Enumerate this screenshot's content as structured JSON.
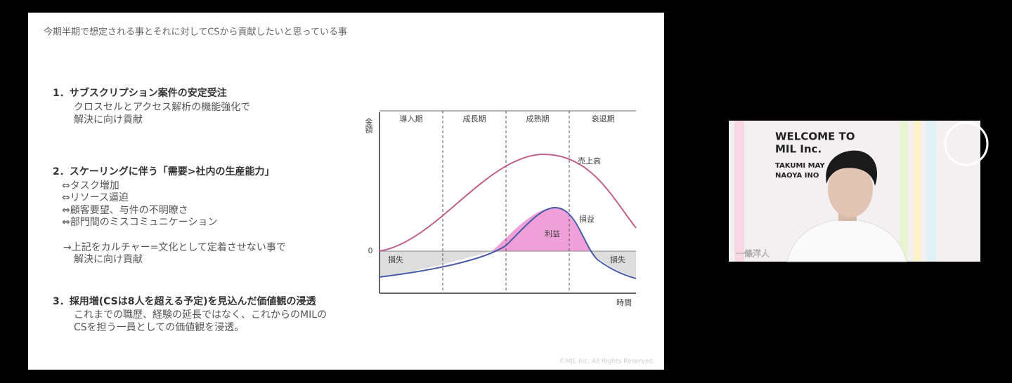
{
  "slide": {
    "title": "今期半期で想定される事とそれに対してCSから貢献したいと思っている事",
    "items": [
      {
        "heading": "1．サブスクリプション案件の安定受注",
        "lines": [
          "クロスセルとアクセス解析の機能強化で",
          "解決に向け貢献"
        ]
      },
      {
        "heading": "2．スケーリングに伴う「需要>社内の生産能力」",
        "lines": [
          "⇔タスク増加",
          "⇔リソース逼迫",
          "⇔顧客要望、与件の不明瞭さ",
          "⇔部門間のミスコミュニケーション",
          "→上記をカルチャー=文化として定着させない事で",
          "解決に向け貢献"
        ]
      },
      {
        "heading": "3．採用増(CSは8人を超える予定)を見込んだ価値観の浸透",
        "lines": [
          "これまでの職歴、経験の延長ではなく、これからのMILの",
          "CSを担う一員としての価値観を浸透。"
        ]
      }
    ],
    "diagram": {
      "y_axis_label": "金額",
      "x_axis_label": "時間",
      "zero_label": "0",
      "phases": [
        "導入期",
        "成長期",
        "成熟期",
        "衰退期"
      ],
      "sales_label": "売上高",
      "profit_loss_label": "損益",
      "profit_label": "利益",
      "loss_left_label": "損失",
      "loss_right_label": "損失"
    },
    "copyright": "©MIL Inc. All Rights Reserved."
  },
  "video": {
    "banner_lines": [
      "WELCOME TO",
      "MIL Inc."
    ],
    "names": [
      "TAKUMI MAY",
      "NAOYA INO"
    ],
    "participant_name": "一條洋人"
  }
}
